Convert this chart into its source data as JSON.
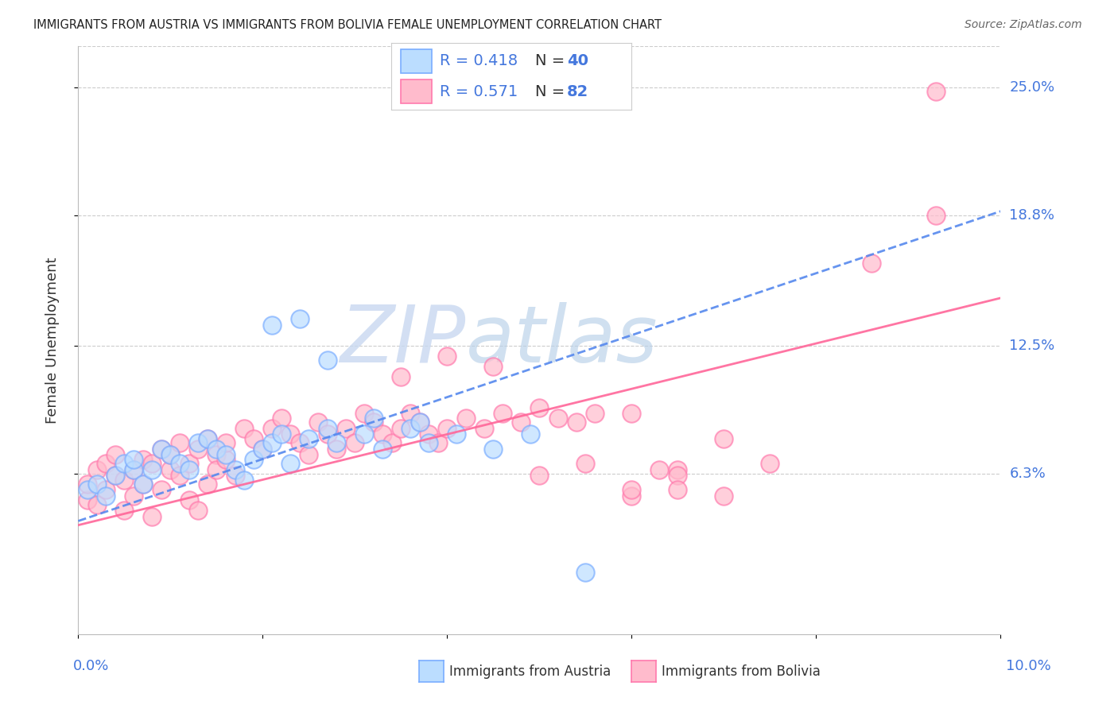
{
  "title": "IMMIGRANTS FROM AUSTRIA VS IMMIGRANTS FROM BOLIVIA FEMALE UNEMPLOYMENT CORRELATION CHART",
  "source": "Source: ZipAtlas.com",
  "ylabel": "Female Unemployment",
  "xlim": [
    0.0,
    0.1
  ],
  "ylim": [
    -0.015,
    0.27
  ],
  "ytick_labels": [
    "6.3%",
    "12.5%",
    "18.8%",
    "25.0%"
  ],
  "ytick_values": [
    0.063,
    0.125,
    0.188,
    0.25
  ],
  "xtick_values": [
    0.0,
    0.02,
    0.04,
    0.06,
    0.08,
    0.1
  ],
  "austria_edge": "#7AADFF",
  "austria_fill": "#BBDDFF",
  "bolivia_edge": "#FF7AAD",
  "bolivia_fill": "#FFBBCC",
  "austria_R": 0.418,
  "austria_N": 40,
  "bolivia_R": 0.571,
  "bolivia_N": 82,
  "text_blue": "#4477DD",
  "text_red": "#FF3366",
  "legend_text_color": "#4477DD",
  "austria_line_color": "#5588EE",
  "bolivia_line_color": "#FF6699",
  "austria_x": [
    0.001,
    0.002,
    0.003,
    0.004,
    0.005,
    0.006,
    0.006,
    0.007,
    0.008,
    0.009,
    0.01,
    0.011,
    0.012,
    0.013,
    0.014,
    0.015,
    0.016,
    0.017,
    0.018,
    0.019,
    0.02,
    0.021,
    0.022,
    0.023,
    0.025,
    0.027,
    0.028,
    0.031,
    0.033,
    0.036,
    0.038,
    0.041,
    0.021,
    0.024,
    0.027,
    0.049,
    0.045,
    0.037,
    0.032,
    0.055
  ],
  "austria_y": [
    0.055,
    0.058,
    0.052,
    0.062,
    0.068,
    0.065,
    0.07,
    0.058,
    0.065,
    0.075,
    0.072,
    0.068,
    0.065,
    0.078,
    0.08,
    0.075,
    0.072,
    0.065,
    0.06,
    0.07,
    0.075,
    0.078,
    0.082,
    0.068,
    0.08,
    0.085,
    0.078,
    0.082,
    0.075,
    0.085,
    0.078,
    0.082,
    0.135,
    0.138,
    0.118,
    0.082,
    0.075,
    0.088,
    0.09,
    0.015
  ],
  "bolivia_x": [
    0.001,
    0.001,
    0.002,
    0.002,
    0.003,
    0.003,
    0.004,
    0.004,
    0.005,
    0.005,
    0.006,
    0.006,
    0.007,
    0.007,
    0.008,
    0.008,
    0.009,
    0.009,
    0.01,
    0.01,
    0.011,
    0.011,
    0.012,
    0.012,
    0.013,
    0.013,
    0.014,
    0.014,
    0.015,
    0.015,
    0.016,
    0.016,
    0.017,
    0.018,
    0.019,
    0.02,
    0.021,
    0.022,
    0.023,
    0.024,
    0.025,
    0.026,
    0.027,
    0.028,
    0.029,
    0.03,
    0.031,
    0.032,
    0.033,
    0.034,
    0.035,
    0.036,
    0.037,
    0.038,
    0.039,
    0.04,
    0.042,
    0.044,
    0.046,
    0.048,
    0.05,
    0.052,
    0.054,
    0.056,
    0.06,
    0.065,
    0.07,
    0.035,
    0.04,
    0.045,
    0.05,
    0.055,
    0.06,
    0.065,
    0.07,
    0.075,
    0.06,
    0.065,
    0.063,
    0.086,
    0.093,
    0.093
  ],
  "bolivia_y": [
    0.05,
    0.058,
    0.048,
    0.065,
    0.055,
    0.068,
    0.062,
    0.072,
    0.045,
    0.06,
    0.052,
    0.065,
    0.07,
    0.058,
    0.042,
    0.068,
    0.055,
    0.075,
    0.065,
    0.072,
    0.078,
    0.062,
    0.05,
    0.068,
    0.045,
    0.075,
    0.08,
    0.058,
    0.072,
    0.065,
    0.07,
    0.078,
    0.062,
    0.085,
    0.08,
    0.075,
    0.085,
    0.09,
    0.082,
    0.078,
    0.072,
    0.088,
    0.082,
    0.075,
    0.085,
    0.078,
    0.092,
    0.088,
    0.082,
    0.078,
    0.085,
    0.092,
    0.088,
    0.082,
    0.078,
    0.085,
    0.09,
    0.085,
    0.092,
    0.088,
    0.095,
    0.09,
    0.088,
    0.092,
    0.052,
    0.065,
    0.08,
    0.11,
    0.12,
    0.115,
    0.062,
    0.068,
    0.055,
    0.062,
    0.052,
    0.068,
    0.092,
    0.055,
    0.065,
    0.165,
    0.248,
    0.188
  ]
}
